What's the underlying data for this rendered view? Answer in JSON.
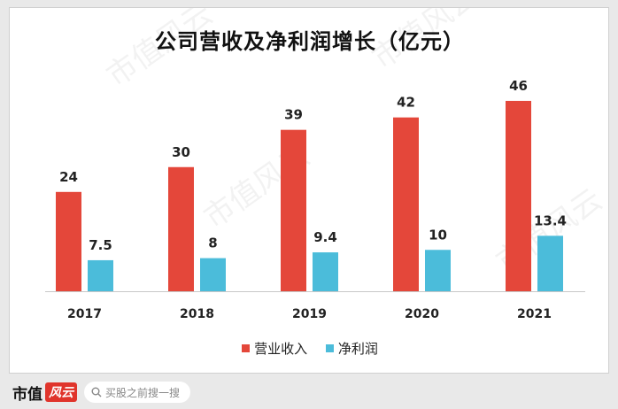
{
  "chart_data": {
    "type": "bar",
    "title": "公司营收及净利润增长（亿元）",
    "categories": [
      "2017",
      "2018",
      "2019",
      "2020",
      "2021"
    ],
    "series": [
      {
        "name": "营业收入",
        "values": [
          24,
          30,
          39,
          42,
          46
        ],
        "labels": [
          "24",
          "30",
          "39",
          "42",
          "46"
        ],
        "color": "#e4473a"
      },
      {
        "name": "净利润",
        "values": [
          7.5,
          8,
          9.4,
          10,
          13.4
        ],
        "labels": [
          "7.5",
          "8",
          "9.4",
          "10",
          "13.4"
        ],
        "color": "#4bbcda"
      }
    ],
    "xlabel": "",
    "ylabel": "",
    "ylim": [
      0,
      50
    ],
    "grid": false,
    "legend": "bottom-center"
  },
  "watermark": "市值风云",
  "footer": {
    "brand": "市值",
    "brand_mark": "风云",
    "search_placeholder": "买股之前搜一搜"
  }
}
